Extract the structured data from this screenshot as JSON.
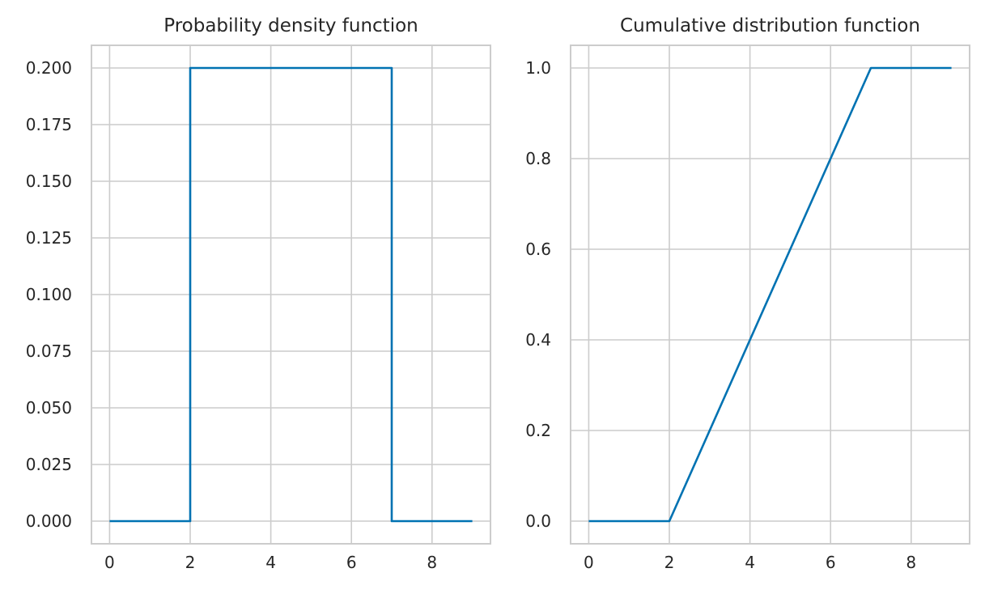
{
  "chart_data": [
    {
      "type": "line",
      "title": "Probability density function",
      "xlabel": "",
      "ylabel": "",
      "xlim": [
        -0.45,
        9.45
      ],
      "ylim": [
        -0.01,
        0.21
      ],
      "xticks": [
        0,
        2,
        4,
        6,
        8
      ],
      "xtick_labels": [
        "0",
        "2",
        "4",
        "6",
        "8"
      ],
      "yticks": [
        0.0,
        0.025,
        0.05,
        0.075,
        0.1,
        0.125,
        0.15,
        0.175,
        0.2
      ],
      "ytick_labels": [
        "0.000",
        "0.025",
        "0.050",
        "0.075",
        "0.100",
        "0.125",
        "0.150",
        "0.175",
        "0.200"
      ],
      "grid": true,
      "color": "#0072b2",
      "series": [
        {
          "x": [
            0,
            2,
            2,
            7,
            7,
            9
          ],
          "y": [
            0,
            0,
            0.2,
            0.2,
            0,
            0
          ]
        }
      ]
    },
    {
      "type": "line",
      "title": "Cumulative distribution function",
      "xlabel": "",
      "ylabel": "",
      "xlim": [
        -0.45,
        9.45
      ],
      "ylim": [
        -0.05,
        1.05
      ],
      "xticks": [
        0,
        2,
        4,
        6,
        8
      ],
      "xtick_labels": [
        "0",
        "2",
        "4",
        "6",
        "8"
      ],
      "yticks": [
        0.0,
        0.2,
        0.4,
        0.6,
        0.8,
        1.0
      ],
      "ytick_labels": [
        "0.0",
        "0.2",
        "0.4",
        "0.6",
        "0.8",
        "1.0"
      ],
      "grid": true,
      "color": "#0072b2",
      "series": [
        {
          "x": [
            0,
            2,
            7,
            9
          ],
          "y": [
            0,
            0,
            1,
            1
          ]
        }
      ]
    }
  ]
}
